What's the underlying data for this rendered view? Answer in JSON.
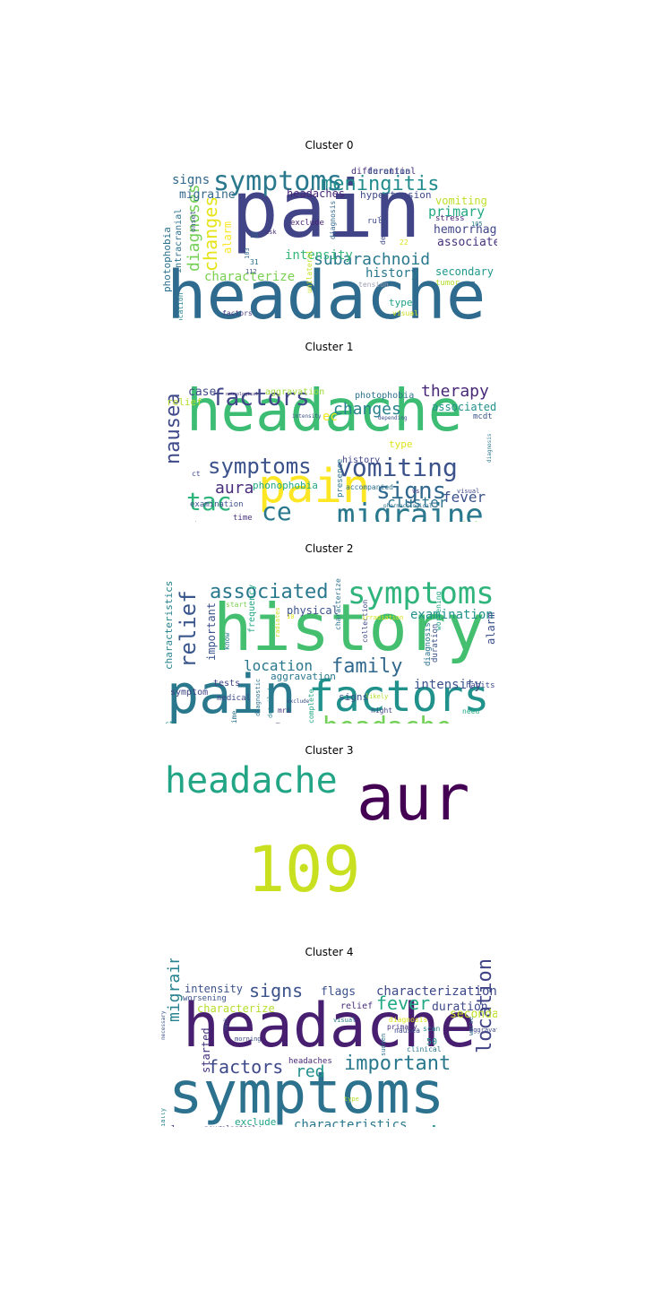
{
  "wordclouds": [
    {
      "title": "Cluster 0",
      "words": [
        {
          "text": "pain",
          "color": "#414487"
        },
        {
          "text": "headache",
          "color": "#2f6b8e"
        },
        {
          "text": "symptoms",
          "color": "#2a788e"
        },
        {
          "text": "meningitis",
          "color": "#228c8d"
        },
        {
          "text": "subarachnoid",
          "color": "#2a788e"
        },
        {
          "text": "changes",
          "color": "#e5e419"
        },
        {
          "text": "diagnoses",
          "color": "#73d056"
        },
        {
          "text": "signs",
          "color": "#31688e"
        },
        {
          "text": "primary",
          "color": "#22a884"
        },
        {
          "text": "characterize",
          "color": "#7ad151"
        },
        {
          "text": "intensity",
          "color": "#35b779"
        },
        {
          "text": "history",
          "color": "#2a788e"
        },
        {
          "text": "migraine",
          "color": "#31688e"
        },
        {
          "text": "headaches",
          "color": "#482878"
        },
        {
          "text": "hypertension",
          "color": "#3e4989"
        },
        {
          "text": "hemorrhage",
          "color": "#404688"
        },
        {
          "text": "associated",
          "color": "#46327e"
        },
        {
          "text": "secondary",
          "color": "#1f988b"
        },
        {
          "text": "vomiting",
          "color": "#bddf26"
        },
        {
          "text": "alarm",
          "color": "#fde725"
        },
        {
          "text": "sinusitis",
          "color": "#31688e"
        },
        {
          "text": "fever",
          "color": "#c2df23"
        },
        {
          "text": "clinical",
          "color": "#39568c"
        },
        {
          "text": "irradiation",
          "color": "#355f8d"
        },
        {
          "text": "nausea",
          "color": "#2d708e"
        },
        {
          "text": "type",
          "color": "#20a386"
        },
        {
          "text": "differential",
          "color": "#472d7b"
        },
        {
          "text": "duration",
          "color": "#3b528b"
        },
        {
          "text": "photophobia",
          "color": "#2c728e"
        },
        {
          "text": "intracranial",
          "color": "#2d708e"
        },
        {
          "text": "exclude",
          "color": "#482475"
        },
        {
          "text": "rule",
          "color": "#3e4989"
        },
        {
          "text": "stress",
          "color": "#482475"
        },
        {
          "text": "tumor",
          "color": "#b5de2b"
        },
        {
          "text": "tension",
          "color": "#9f9fb5"
        },
        {
          "text": "unilateral",
          "color": "#c8e020"
        },
        {
          "text": "visual",
          "color": "#c8e020"
        },
        {
          "text": "diagnosis",
          "color": "#31688e"
        },
        {
          "text": "depending",
          "color": "#3e4989"
        },
        {
          "text": "location",
          "color": "#26828e"
        },
        {
          "text": "cluster",
          "color": "#26828e"
        },
        {
          "text": "factors",
          "color": "#443983"
        },
        {
          "text": "onset",
          "color": "#3b528b"
        },
        {
          "text": "ask",
          "color": "#46327e"
        },
        {
          "text": "26",
          "color": "#31688e"
        },
        {
          "text": "31",
          "color": "#2c728e"
        },
        {
          "text": "103",
          "color": "#31688e"
        },
        {
          "text": "112",
          "color": "#3b528b"
        },
        {
          "text": "22",
          "color": "#dde318"
        },
        {
          "text": "105",
          "color": "#2a788e"
        },
        {
          "text": "107",
          "color": "#31688e"
        }
      ]
    },
    {
      "title": "Cluster 1",
      "words": [
        {
          "text": "headache",
          "color": "#3dbc74"
        },
        {
          "text": "pain",
          "color": "#fde725"
        },
        {
          "text": "migraine",
          "color": "#2a788e"
        },
        {
          "text": "vomiting",
          "color": "#3b528b"
        },
        {
          "text": "symptoms",
          "color": "#3b528b"
        },
        {
          "text": "signs",
          "color": "#31688e"
        },
        {
          "text": "nausea",
          "color": "#3e4989"
        },
        {
          "text": "factors",
          "color": "#404688"
        },
        {
          "text": "tac",
          "color": "#2fb47c"
        },
        {
          "text": "ce",
          "color": "#2a788e"
        },
        {
          "text": "therapy",
          "color": "#482878"
        },
        {
          "text": "changes",
          "color": "#26828e"
        },
        {
          "text": "perform",
          "color": "#27808e"
        },
        {
          "text": "tension",
          "color": "#46327e"
        },
        {
          "text": "cluster",
          "color": "#2c728e"
        },
        {
          "text": "fever",
          "color": "#3b528b"
        },
        {
          "text": "aura",
          "color": "#472d7b"
        },
        {
          "text": "assess",
          "color": "#22a884"
        },
        {
          "text": "blood",
          "color": "#52c569"
        },
        {
          "text": "case",
          "color": "#3e4989"
        },
        {
          "text": "associated",
          "color": "#21918c"
        },
        {
          "text": "relief",
          "color": "#b5de2b"
        },
        {
          "text": "photophobia",
          "color": "#2c728e"
        },
        {
          "text": "phonophobia",
          "color": "#22a884"
        },
        {
          "text": "history",
          "color": "#414487"
        },
        {
          "text": "type",
          "color": "#dde318"
        },
        {
          "text": "presence",
          "color": "#2c728e"
        },
        {
          "text": "vision",
          "color": "#7ad151"
        },
        {
          "text": "etiology",
          "color": "#20a386"
        },
        {
          "text": "count",
          "color": "#21918c"
        },
        {
          "text": "aggravation",
          "color": "#a0da39"
        },
        {
          "text": "examination",
          "color": "#3b528b"
        },
        {
          "text": "accompanied",
          "color": "#2c728e"
        },
        {
          "text": "time",
          "color": "#46327e"
        },
        {
          "text": "ct",
          "color": "#3e4989"
        },
        {
          "text": "mcdt",
          "color": "#3b528b"
        },
        {
          "text": "suspected",
          "color": "#2a788e"
        },
        {
          "text": "accompanying",
          "color": "#26828e"
        },
        {
          "text": "cause",
          "color": "#404688"
        },
        {
          "text": "vs",
          "color": "#46327e"
        },
        {
          "text": "visual",
          "color": "#3e4989"
        },
        {
          "text": "pharmacological",
          "color": "#2c728e"
        },
        {
          "text": "intensity",
          "color": "#3b528b"
        },
        {
          "text": "neurological",
          "color": "#46327e"
        },
        {
          "text": "depending",
          "color": "#3b528b"
        },
        {
          "text": "diagnosis",
          "color": "#2a788e"
        },
        {
          "text": "ec",
          "color": "#f4e61e"
        }
      ]
    },
    {
      "title": "Cluster 2",
      "words": [
        {
          "text": "history",
          "color": "#44bf70"
        },
        {
          "text": "pain",
          "color": "#2a788e"
        },
        {
          "text": "factors",
          "color": "#21918c"
        },
        {
          "text": "symptoms",
          "color": "#2fb47c"
        },
        {
          "text": "headache",
          "color": "#73d056"
        },
        {
          "text": "relief",
          "color": "#39568c"
        },
        {
          "text": "associated",
          "color": "#2a788e"
        },
        {
          "text": "family",
          "color": "#31688e"
        },
        {
          "text": "personal",
          "color": "#414487"
        },
        {
          "text": "location",
          "color": "#2a788e"
        },
        {
          "text": "intensity",
          "color": "#3b528b"
        },
        {
          "text": "examination",
          "color": "#21918c"
        },
        {
          "text": "important",
          "color": "#3b528b"
        },
        {
          "text": "characteristics",
          "color": "#26828e"
        },
        {
          "text": "physical",
          "color": "#3b528b"
        },
        {
          "text": "aggravation",
          "color": "#2a788e"
        },
        {
          "text": "alarm",
          "color": "#3b528b"
        },
        {
          "text": "signs",
          "color": "#3b528b"
        },
        {
          "text": "frequency",
          "color": "#22a884"
        },
        {
          "text": "tests",
          "color": "#414487"
        },
        {
          "text": "medical",
          "color": "#3e4989"
        },
        {
          "text": "symptom",
          "color": "#414487"
        },
        {
          "text": "medication",
          "color": "#2a788e"
        },
        {
          "text": "clinical",
          "color": "#46327e"
        },
        {
          "text": "improves",
          "color": "#472d7b"
        },
        {
          "text": "duration",
          "color": "#3b528b"
        },
        {
          "text": "diagnosis",
          "color": "#2c728e"
        },
        {
          "text": "worsening",
          "color": "#22a884"
        },
        {
          "text": "collection",
          "color": "#3e4989"
        },
        {
          "text": "characterize",
          "color": "#2c728e"
        },
        {
          "text": "habits",
          "color": "#3e4989"
        },
        {
          "text": "need",
          "color": "#22a884"
        },
        {
          "text": "started",
          "color": "#2c728e"
        },
        {
          "text": "signals",
          "color": "#2fb47c"
        },
        {
          "text": "understand",
          "color": "#3b528b"
        },
        {
          "text": "mri",
          "color": "#46327e"
        },
        {
          "text": "complete",
          "color": "#22a884"
        },
        {
          "text": "night",
          "color": "#414487"
        },
        {
          "text": "likely",
          "color": "#b5de2b"
        },
        {
          "text": "radiates",
          "color": "#c8e020"
        },
        {
          "text": "irradiation",
          "color": "#dde318"
        },
        {
          "text": "know",
          "color": "#2a788e"
        },
        {
          "text": "start",
          "color": "#7ad151"
        },
        {
          "text": "time",
          "color": "#2c728e"
        },
        {
          "text": "ct",
          "color": "#21918c"
        },
        {
          "text": "diagnostic",
          "color": "#2c728e"
        },
        {
          "text": "detailed",
          "color": "#26828e"
        },
        {
          "text": "exclude",
          "color": "#3b528b"
        },
        {
          "text": "10",
          "color": "#dde318"
        }
      ]
    },
    {
      "title": "Cluster 3",
      "words": [
        {
          "text": "headache",
          "color": "#21a585"
        },
        {
          "text": "aur",
          "color": "#440154"
        },
        {
          "text": "109",
          "color": "#c8e020"
        }
      ]
    },
    {
      "title": "Cluster 4",
      "words": [
        {
          "text": "headache",
          "color": "#481f70"
        },
        {
          "text": "symptoms",
          "color": "#2c728e"
        },
        {
          "text": "pain",
          "color": "#21918c"
        },
        {
          "text": "important",
          "color": "#2a788e"
        },
        {
          "text": "location",
          "color": "#414487"
        },
        {
          "text": "associated",
          "color": "#31688e"
        },
        {
          "text": "fever",
          "color": "#22a884"
        },
        {
          "text": "factors",
          "color": "#3e4989"
        },
        {
          "text": "signs",
          "color": "#3b528b"
        },
        {
          "text": "red",
          "color": "#21918c"
        },
        {
          "text": "migraine",
          "color": "#26828e"
        },
        {
          "text": "characterization",
          "color": "#3e4989"
        },
        {
          "text": "characteristics",
          "color": "#2a788e"
        },
        {
          "text": "flags",
          "color": "#3b528b"
        },
        {
          "text": "duration",
          "color": "#3e4989"
        },
        {
          "text": "secondary",
          "color": "#bddf26"
        },
        {
          "text": "characterize",
          "color": "#b5de2b"
        },
        {
          "text": "relief",
          "color": "#472d7b"
        },
        {
          "text": "started",
          "color": "#46327e"
        },
        {
          "text": "intensity",
          "color": "#3b528b"
        },
        {
          "text": "changes",
          "color": "#22a884"
        },
        {
          "text": "patient",
          "color": "#2c728e"
        },
        {
          "text": "exclude",
          "color": "#20a386"
        },
        {
          "text": "alarm",
          "color": "#404688"
        },
        {
          "text": "irradiation",
          "color": "#46327e"
        },
        {
          "text": "history",
          "color": "#482878"
        },
        {
          "text": "worsening",
          "color": "#3b528b"
        },
        {
          "text": "headaches",
          "color": "#482878"
        },
        {
          "text": "neurological",
          "color": "#46327e"
        },
        {
          "text": "differential",
          "color": "#3e4989"
        },
        {
          "text": "disorders",
          "color": "#2a788e"
        },
        {
          "text": "especially",
          "color": "#26828e"
        },
        {
          "text": "aura",
          "color": "#2a788e"
        },
        {
          "text": "vomiting",
          "color": "#3b528b"
        },
        {
          "text": "tension",
          "color": "#2c728e"
        },
        {
          "text": "type",
          "color": "#b5de2b"
        },
        {
          "text": "clinical",
          "color": "#2a788e"
        },
        {
          "text": "diagnosis",
          "color": "#dde318"
        },
        {
          "text": "primary",
          "color": "#46327e"
        },
        {
          "text": "nausea",
          "color": "#3e4989"
        },
        {
          "text": "visual",
          "color": "#2a788e"
        },
        {
          "text": "morning",
          "color": "#3e4989"
        },
        {
          "text": "neck",
          "color": "#3b528b"
        },
        {
          "text": "sudden",
          "color": "#2c728e"
        },
        {
          "text": "aggravation",
          "color": "#3e4989"
        },
        {
          "text": "worse",
          "color": "#31688e"
        },
        {
          "text": "complaint",
          "color": "#7ad151"
        },
        {
          "text": "scan",
          "color": "#26828e"
        },
        {
          "text": "necessary",
          "color": "#3b528b"
        },
        {
          "text": "50",
          "color": "#21918c"
        }
      ]
    }
  ]
}
